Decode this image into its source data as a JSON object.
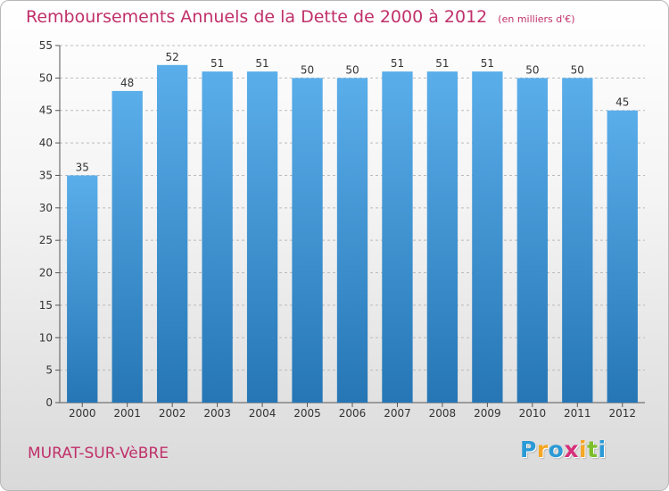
{
  "title": "Remboursements Annuels de la Dette de 2000 à 2012",
  "unit_note": "(en milliers d'€)",
  "city": "MURAT-SUR-VèBRE",
  "logo": {
    "letters": [
      "P",
      "r",
      "o",
      "x",
      "i",
      "t",
      "i"
    ],
    "colors": [
      "#2a9ad6",
      "#f5a623",
      "#2a9ad6",
      "#d62f7a",
      "#f5a623",
      "#7cbf2a",
      "#2a9ad6"
    ]
  },
  "colors": {
    "title": "#c0306a",
    "bar_top": "#5aaeea",
    "bar_bottom": "#2676b5",
    "grid": "#bbbbbb"
  },
  "chart_data": {
    "type": "bar",
    "categories": [
      "2000",
      "2001",
      "2002",
      "2003",
      "2004",
      "2005",
      "2006",
      "2007",
      "2008",
      "2009",
      "2010",
      "2011",
      "2012"
    ],
    "values": [
      35,
      48,
      52,
      51,
      51,
      50,
      50,
      51,
      51,
      51,
      50,
      50,
      45
    ],
    "title": "Remboursements Annuels de la Dette de 2000 à 2012",
    "xlabel": "",
    "ylabel": "",
    "ylim": [
      0,
      55
    ],
    "yticks": [
      0,
      5,
      10,
      15,
      20,
      25,
      30,
      35,
      40,
      45,
      50,
      55
    ],
    "grid": true,
    "data_labels": true
  }
}
